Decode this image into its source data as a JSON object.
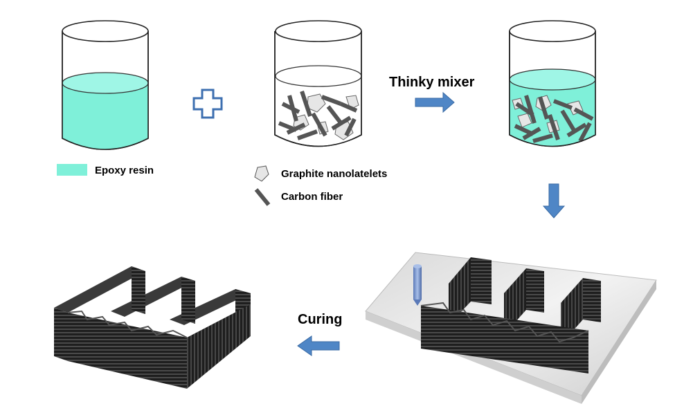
{
  "legend": {
    "epoxy_label": "Epoxy resin",
    "graphite_label": "Graphite nanolatelets",
    "carbon_label": "Carbon fiber"
  },
  "steps": {
    "mixer_label": "Thinky mixer",
    "curing_label": "Curing"
  },
  "colors": {
    "epoxy": "#7ff0d9",
    "arrow": "#4f86c6",
    "arrow_edge": "#3a6aa3",
    "fiber": "#555555",
    "platelet": "#e6e6e6",
    "printed_part": "#2a2a2a",
    "plate": "#e9e9e9",
    "nozzle": "#6f8fc9"
  }
}
